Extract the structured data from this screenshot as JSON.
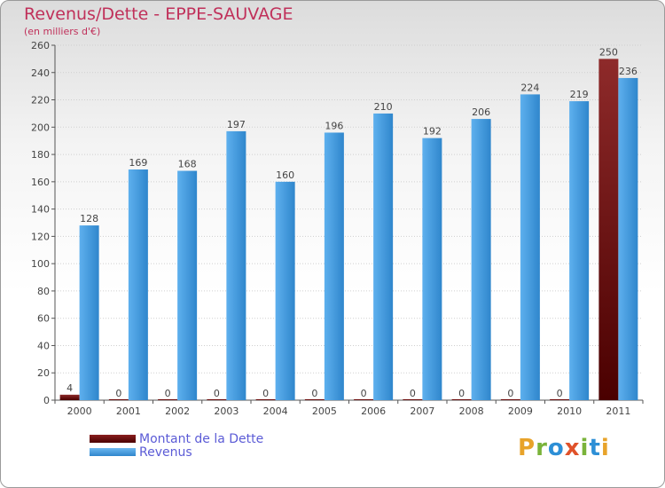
{
  "header": {
    "title": "Revenus/Dette - EPPE-SAUVAGE",
    "subtitle": "(en milliers d'€)"
  },
  "legend": {
    "items": [
      {
        "label": "Montant de la Dette",
        "color": "#6a0a0a"
      },
      {
        "label": "Revenus",
        "color": "#4fa3e6"
      }
    ]
  },
  "logo": {
    "letters": [
      {
        "char": "P",
        "color": "#e8a32a"
      },
      {
        "char": "r",
        "color": "#7ab33a"
      },
      {
        "char": "o",
        "color": "#2d8fd6"
      },
      {
        "char": "x",
        "color": "#e0522a"
      },
      {
        "char": "i",
        "color": "#7ab33a"
      },
      {
        "char": "t",
        "color": "#2d8fd6"
      },
      {
        "char": "i",
        "color": "#e8a32a"
      }
    ]
  },
  "chart_data": {
    "type": "bar",
    "title": "Revenus/Dette - EPPE-SAUVAGE",
    "subtitle": "(en milliers d'€)",
    "categories": [
      "2000",
      "2001",
      "2002",
      "2003",
      "2004",
      "2005",
      "2006",
      "2007",
      "2008",
      "2009",
      "2010",
      "2011"
    ],
    "series": [
      {
        "name": "Montant de la Dette",
        "color": "#6a0a0a",
        "values": [
          4,
          0,
          0,
          0,
          0,
          0,
          0,
          0,
          0,
          0,
          0,
          250
        ]
      },
      {
        "name": "Revenus",
        "color": "#4fa3e6",
        "values": [
          128,
          169,
          168,
          197,
          160,
          196,
          210,
          192,
          206,
          224,
          219,
          236
        ]
      }
    ],
    "ylim": [
      0,
      260
    ],
    "yticks": [
      0,
      20,
      40,
      60,
      80,
      100,
      120,
      140,
      160,
      180,
      200,
      220,
      240,
      260
    ],
    "grid": true,
    "legend_position": "bottom-left"
  }
}
